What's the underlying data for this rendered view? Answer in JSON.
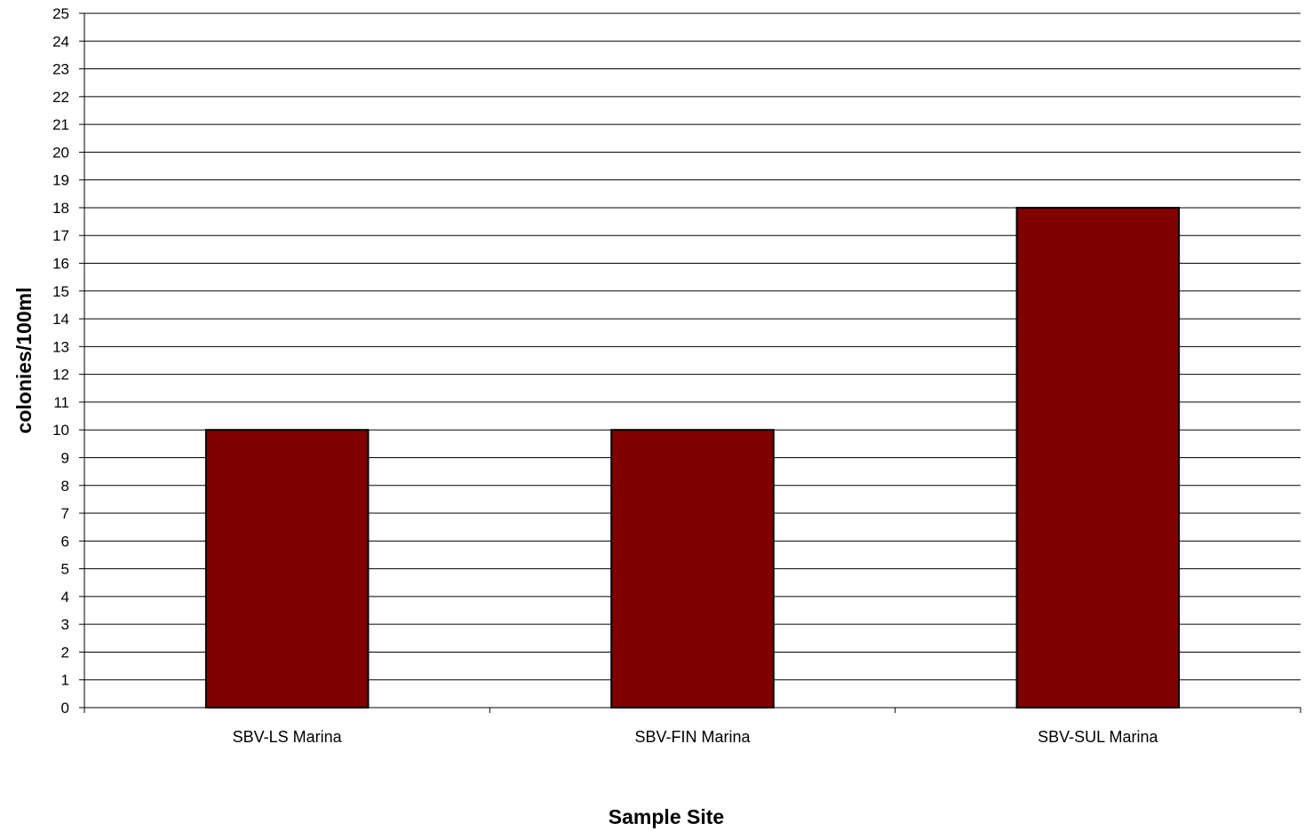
{
  "chart_data": {
    "type": "bar",
    "title": "",
    "xlabel": "Sample Site",
    "ylabel": "colonies/100ml",
    "categories": [
      "SBV-LS Marina",
      "SBV-FIN Marina",
      "SBV-SUL Marina"
    ],
    "values": [
      10,
      10,
      18
    ],
    "ylim": [
      0,
      25
    ],
    "ytick_step": 1,
    "grid": true,
    "legend": "none",
    "bar_color": "#800000",
    "bar_edge_color": "#000000"
  }
}
